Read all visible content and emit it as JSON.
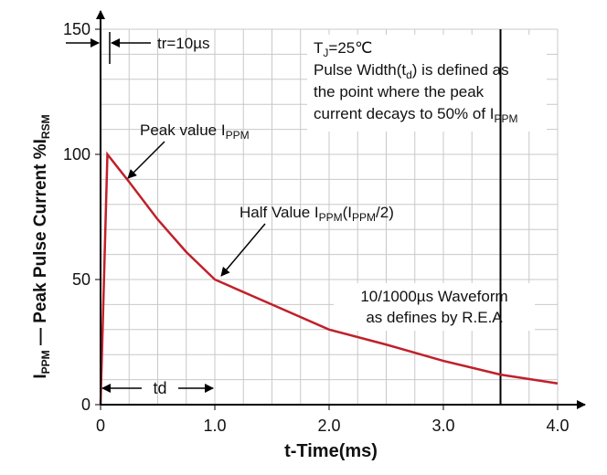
{
  "chart_data": {
    "type": "line",
    "x_label": "t-Time(ms)",
    "y_label": [
      "I",
      "PPM",
      " — Peak Pulse Current  %I",
      "RSM"
    ],
    "x": [
      0,
      0.06,
      0.25,
      0.5,
      0.75,
      1.0,
      1.5,
      2.0,
      2.5,
      3.0,
      3.5,
      4.0
    ],
    "series": [
      {
        "color": "#c0202a",
        "values": [
          0,
          100,
          89,
          74,
          61,
          50,
          40,
          30,
          24,
          17.5,
          12,
          8.5
        ]
      }
    ],
    "xlim": [
      0,
      4.0
    ],
    "ylim": [
      0,
      150
    ],
    "xticks": [
      0,
      {
        "value": 1,
        "label": "1.0"
      },
      {
        "value": 2,
        "label": "2.0"
      },
      {
        "value": 3,
        "label": "3.0"
      },
      {
        "value": 4,
        "label": "4.0"
      }
    ],
    "yticks": [
      0,
      50,
      100,
      150
    ],
    "xgrid": [
      0.25,
      0.5,
      0.75,
      1,
      1.25,
      1.5,
      1.75,
      2,
      2.25,
      2.5,
      2.75,
      3,
      3.25,
      3.5,
      3.75,
      4
    ],
    "ygrid": [
      10,
      20,
      30,
      40,
      50,
      60,
      70,
      80,
      90,
      100,
      110,
      120,
      130,
      140,
      150
    ],
    "vline": 3.5,
    "annotations": {
      "tr": "tr=10µs",
      "td": "td",
      "conditions": [
        [
          "T",
          "J",
          "=25℃"
        ],
        [
          "Pulse Width(t",
          "d",
          ") is defined as"
        ],
        [
          "the point where the peak"
        ],
        [
          "current decays to 50% of I",
          "PPM"
        ]
      ],
      "peak": [
        "Peak value I",
        "PPM"
      ],
      "half": [
        "Half Value I",
        "PPM",
        "(I",
        "PPM",
        "/2)"
      ],
      "waveform": [
        "10/1000µs Waveform",
        "as defines by R.E.A"
      ]
    }
  }
}
